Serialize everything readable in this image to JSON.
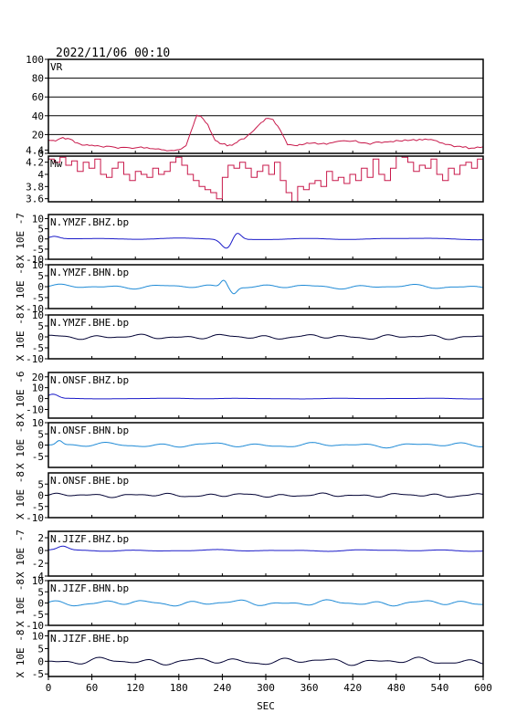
{
  "title": "2022/11/06 00:10",
  "chart_data": {
    "type": "line",
    "xlabel": "SEC",
    "xlim": [
      0,
      600
    ],
    "xticks": [
      0,
      60,
      120,
      180,
      240,
      300,
      360,
      420,
      480,
      540,
      600
    ],
    "panels": [
      {
        "id": "vr",
        "label": "VR",
        "ylabel": "",
        "color": "#c8194b",
        "ylim": [
          0,
          100
        ],
        "ticks": [
          0,
          20,
          40,
          60,
          80,
          100
        ],
        "gridlines": [
          20,
          40,
          60,
          80
        ],
        "style": "polyline",
        "x": [
          0,
          10,
          20,
          30,
          40,
          50,
          60,
          80,
          100,
          120,
          140,
          160,
          170,
          180,
          190,
          200,
          205,
          210,
          220,
          230,
          240,
          250,
          260,
          270,
          280,
          290,
          300,
          310,
          320,
          330,
          340,
          350,
          360,
          380,
          400,
          420,
          440,
          460,
          480,
          500,
          520,
          540,
          560,
          580,
          600
        ],
        "y": [
          13,
          14,
          16,
          15,
          11,
          9,
          8,
          7,
          6,
          6,
          6,
          4,
          3,
          4,
          8,
          30,
          41,
          40,
          30,
          14,
          10,
          8,
          12,
          16,
          22,
          30,
          37,
          36,
          24,
          10,
          8,
          9,
          11,
          10,
          12,
          14,
          10,
          12,
          13,
          14,
          15,
          12,
          8,
          6,
          7
        ]
      },
      {
        "id": "mw",
        "label": "Mw",
        "ylabel": "",
        "color": "#c8194b",
        "ylim": [
          3.55,
          4.3
        ],
        "ticks": [
          3.6,
          3.8,
          4.0,
          4.2,
          4.4
        ],
        "tick_labels": [
          "3.6",
          "3.8",
          "4",
          "4.2",
          "4.4"
        ],
        "gridlines": [],
        "style": "step",
        "x": [
          0,
          8,
          16,
          24,
          32,
          40,
          48,
          56,
          64,
          72,
          80,
          88,
          96,
          104,
          112,
          120,
          128,
          136,
          144,
          152,
          160,
          168,
          176,
          184,
          192,
          200,
          208,
          216,
          224,
          232,
          240,
          248,
          256,
          264,
          272,
          280,
          288,
          296,
          304,
          312,
          320,
          328,
          336,
          344,
          352,
          360,
          368,
          376,
          384,
          392,
          400,
          408,
          416,
          424,
          432,
          440,
          448,
          456,
          464,
          472,
          480,
          488,
          496,
          504,
          512,
          520,
          528,
          536,
          544,
          552,
          560,
          568,
          576,
          584,
          592,
          600
        ],
        "y": [
          4.25,
          4.2,
          4.28,
          4.15,
          4.22,
          4.05,
          4.2,
          4.1,
          4.25,
          4.0,
          3.95,
          4.1,
          4.2,
          4.0,
          3.9,
          4.05,
          4.0,
          3.95,
          4.1,
          4.0,
          4.05,
          4.2,
          4.28,
          4.15,
          4.0,
          3.9,
          3.8,
          3.75,
          3.7,
          3.6,
          3.95,
          4.15,
          4.1,
          4.2,
          4.1,
          3.95,
          4.05,
          4.15,
          4.0,
          4.2,
          3.9,
          3.7,
          3.55,
          3.8,
          3.75,
          3.85,
          3.9,
          3.8,
          4.05,
          3.9,
          3.95,
          3.85,
          4.0,
          3.9,
          4.1,
          3.95,
          4.25,
          4.0,
          3.9,
          4.1,
          4.3,
          4.28,
          4.2,
          4.05,
          4.15,
          4.1,
          4.25,
          4.0,
          3.9,
          4.1,
          4.0,
          4.15,
          4.2,
          4.1,
          4.25,
          4.2
        ]
      },
      {
        "id": "ymzf-bhz",
        "label": "N.YMZF.BHZ.bp",
        "ylabel": "X 10E -7",
        "color": "#1a1ac8",
        "ylim": [
          -10,
          12
        ],
        "ticks": [
          -10,
          -5,
          0,
          5,
          10
        ],
        "gridlines": [],
        "style": "wave",
        "base_amp": 0.4,
        "base_freq": 0.04,
        "events": [
          {
            "t": 246,
            "amp": -4.5,
            "width": 10
          },
          {
            "t": 260,
            "amp": 3.5,
            "width": 8
          },
          {
            "t": 8,
            "amp": 1.2,
            "width": 10
          }
        ]
      },
      {
        "id": "ymzf-bhn",
        "label": "N.YMZF.BHN.bp",
        "ylabel": "X 10E -8",
        "color": "#1e8ad6",
        "ylim": [
          -10,
          10
        ],
        "ticks": [
          -10,
          -5,
          0,
          5,
          10
        ],
        "gridlines": [],
        "style": "wave",
        "base_amp": 0.9,
        "base_freq": 0.09,
        "events": [
          {
            "t": 242,
            "amp": 3.5,
            "width": 6
          },
          {
            "t": 256,
            "amp": -2.5,
            "width": 6
          }
        ]
      },
      {
        "id": "ymzf-bhe",
        "label": "N.YMZF.BHE.bp",
        "ylabel": "X 10E -8",
        "color": "#000033",
        "ylim": [
          -10,
          10
        ],
        "ticks": [
          -10,
          -5,
          0,
          5,
          10
        ],
        "gridlines": [],
        "style": "wave",
        "base_amp": 1.0,
        "base_freq": 0.11,
        "events": []
      },
      {
        "id": "onsf-bhz",
        "label": "N.ONSF.BHZ.bp",
        "ylabel": "X 10E -6",
        "color": "#1a1ac8",
        "ylim": [
          -18,
          24
        ],
        "ticks": [
          -10,
          0,
          10,
          20
        ],
        "gridlines": [],
        "style": "wave",
        "base_amp": 0.3,
        "base_freq": 0.05,
        "events": [
          {
            "t": 6,
            "amp": 4,
            "width": 10
          }
        ]
      },
      {
        "id": "onsf-bhn",
        "label": "N.ONSF.BHN.bp",
        "ylabel": "X 10E -8",
        "color": "#1e8ad6",
        "ylim": [
          -10,
          10
        ],
        "ticks": [
          -5,
          0,
          5,
          10
        ],
        "gridlines": [],
        "style": "wave",
        "base_amp": 1.0,
        "base_freq": 0.09,
        "events": [
          {
            "t": 15,
            "amp": 2,
            "width": 6
          }
        ]
      },
      {
        "id": "onsf-bhe",
        "label": "N.ONSF.BHE.bp",
        "ylabel": "X 10E -8",
        "color": "#000033",
        "ylim": [
          -10,
          10
        ],
        "ticks": [
          -10,
          -5,
          0,
          5
        ],
        "gridlines": [],
        "style": "wave",
        "base_amp": 0.8,
        "base_freq": 0.12,
        "events": []
      },
      {
        "id": "jizf-bhz",
        "label": "N.JIZF.BHZ.bp",
        "ylabel": "X 10E -7",
        "color": "#1a1ac8",
        "ylim": [
          -4,
          3
        ],
        "ticks": [
          -4,
          -2,
          0,
          2
        ],
        "gridlines": [],
        "style": "wave",
        "base_amp": 0.12,
        "base_freq": 0.06,
        "events": [
          {
            "t": 20,
            "amp": 0.6,
            "width": 10
          }
        ]
      },
      {
        "id": "jizf-bhn",
        "label": "N.JIZF.BHN.bp",
        "ylabel": "X 10E -8",
        "color": "#1e8ad6",
        "ylim": [
          -10,
          10
        ],
        "ticks": [
          -10,
          -5,
          0,
          5,
          10
        ],
        "gridlines": [],
        "style": "wave",
        "base_amp": 1.2,
        "base_freq": 0.1,
        "events": []
      },
      {
        "id": "jizf-bhe",
        "label": "N.JIZF.BHE.bp",
        "ylabel": "X 10E -8",
        "color": "#000033",
        "ylim": [
          -6,
          12
        ],
        "ticks": [
          -5,
          0,
          5,
          10
        ],
        "gridlines": [],
        "style": "wave",
        "base_amp": 1.3,
        "base_freq": 0.1,
        "events": []
      }
    ]
  }
}
